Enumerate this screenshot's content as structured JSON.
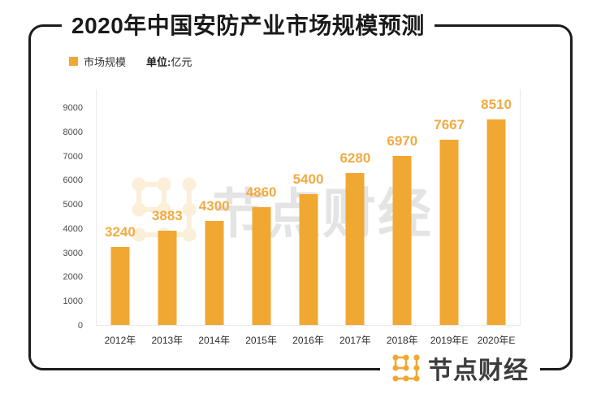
{
  "header": {
    "title": "2020年中国安防产业市场规模预测"
  },
  "legend": {
    "series_label": "市场规模",
    "unit_prefix": "单位:",
    "unit_value": "亿元"
  },
  "chart_data": {
    "type": "bar",
    "title": "2020年中国安防产业市场规模预测",
    "unit": "亿元",
    "categories": [
      "2012年",
      "2013年",
      "2014年",
      "2015年",
      "2016年",
      "2017年",
      "2018年",
      "2019年E",
      "2020年E"
    ],
    "series": [
      {
        "name": "市场规模",
        "values": [
          3240,
          3883,
          4300,
          4860,
          5400,
          6280,
          6970,
          7667,
          8510
        ]
      }
    ],
    "yticks": [
      0,
      1000,
      2000,
      3000,
      4000,
      5000,
      6000,
      7000,
      8000,
      9000
    ],
    "ylim": [
      0,
      9000
    ],
    "grid": false,
    "legend_position": "top-left",
    "bar_color": "#F0A832",
    "value_label_color": "#F1AB43"
  },
  "watermark": {
    "text": "节点财经",
    "icon": "node-grid-logo-icon"
  },
  "footer": {
    "brand_name": "节点财经",
    "icon": "node-grid-logo-icon"
  },
  "colors": {
    "accent": "#F0A832",
    "frame_border": "#1C1C1C",
    "axis_line": "#E9E9E9",
    "title_text": "#1A1A1A",
    "tick_text": "#4A4A4A",
    "brand_text": "#3B3B3B"
  }
}
